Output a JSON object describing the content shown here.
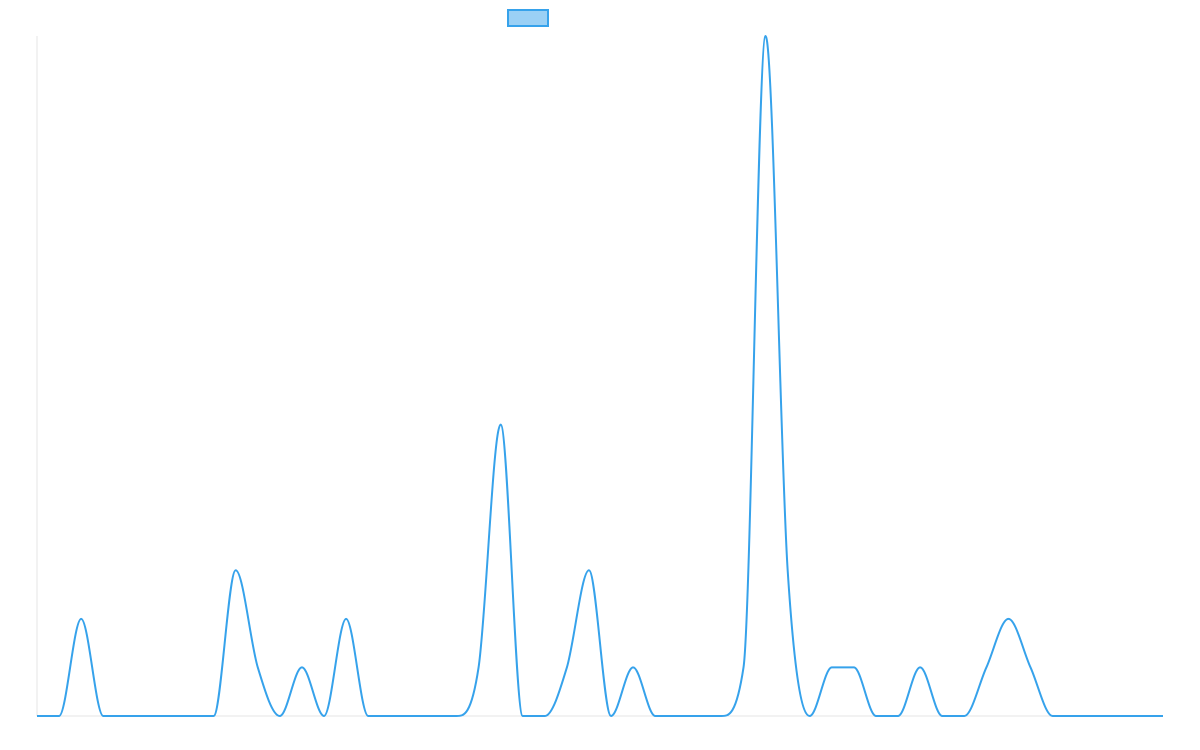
{
  "chart_data": {
    "type": "line",
    "title": "",
    "xlabel": "",
    "ylabel": "",
    "grid": false,
    "legend_position": "top-center",
    "x": [
      0,
      1,
      2,
      3,
      4,
      5,
      6,
      7,
      8,
      9,
      10,
      11,
      12,
      13,
      14,
      15,
      16,
      17,
      18,
      19,
      20,
      21,
      22,
      23,
      24,
      25,
      26,
      27,
      28,
      29,
      30,
      31,
      32,
      33,
      34,
      35,
      36,
      37,
      38,
      39,
      40,
      41,
      42,
      43,
      44,
      45,
      46,
      47,
      48,
      49,
      50,
      51
    ],
    "xlim": [
      0,
      51
    ],
    "ylim": [
      0,
      14
    ],
    "series": [
      {
        "name": "",
        "color": "#36a2eb",
        "fill": "#9ad0f5",
        "values": [
          0,
          0,
          2,
          0,
          0,
          0,
          0,
          0,
          0,
          3,
          1,
          0,
          1,
          0,
          2,
          0,
          0,
          0,
          0,
          0,
          1,
          6,
          0,
          0,
          1,
          3,
          0,
          1,
          0,
          0,
          0,
          0,
          1,
          14,
          3,
          0,
          1,
          1,
          0,
          0,
          1,
          0,
          0,
          1,
          2,
          1,
          0,
          0,
          0,
          0,
          0,
          0
        ]
      }
    ]
  }
}
